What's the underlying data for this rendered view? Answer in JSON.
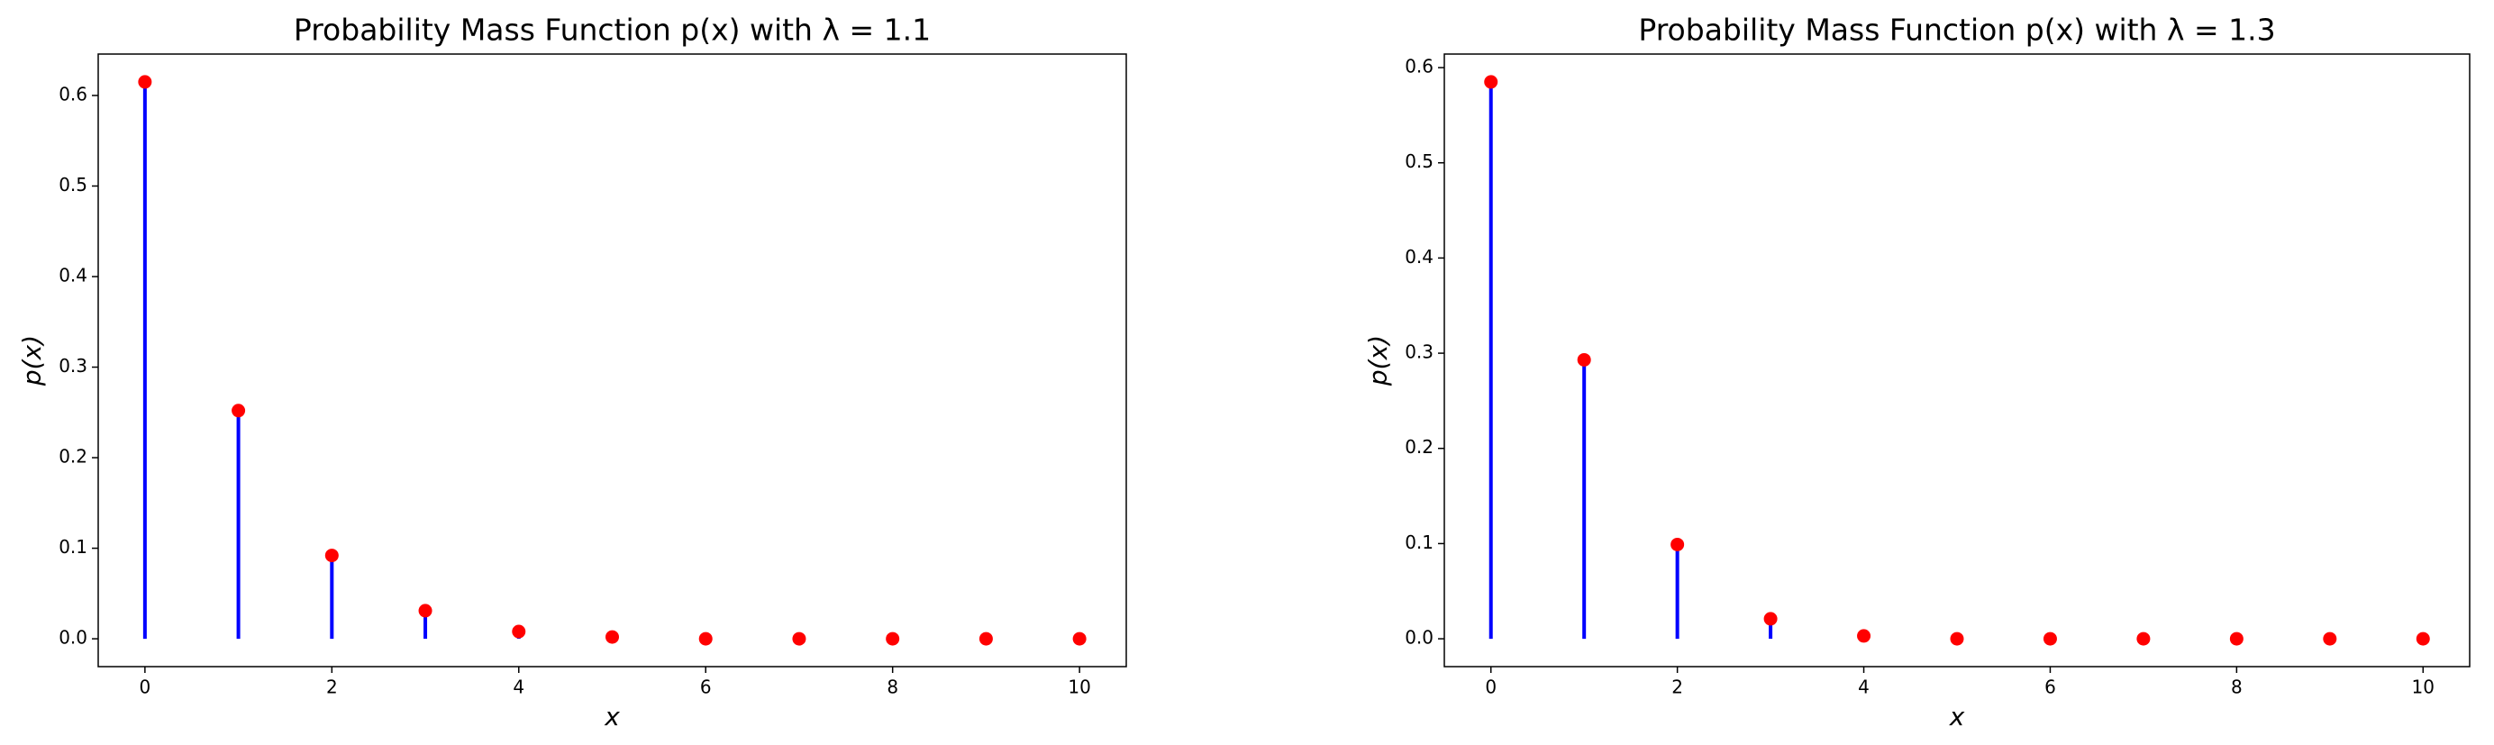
{
  "chart_data": [
    {
      "type": "stem",
      "title": "Probability Mass Function p(x) with λ = 1.1",
      "xlabel": "x",
      "ylabel": "p(x)",
      "x": [
        0,
        1,
        2,
        3,
        4,
        5,
        6,
        7,
        8,
        9,
        10
      ],
      "values": [
        0.615,
        0.252,
        0.092,
        0.031,
        0.008,
        0.002,
        0.0,
        0.0,
        0.0,
        0.0,
        0.0
      ],
      "stem_color": "#0000ff",
      "marker_color": "#ff0000",
      "xlim": [
        -0.5,
        10.5
      ],
      "xticks": [
        0,
        2,
        4,
        6,
        8,
        10
      ],
      "ylim": [
        -0.03075,
        0.64575
      ],
      "yticks": [
        0.0,
        0.1,
        0.2,
        0.3,
        0.4,
        0.5,
        0.6
      ]
    },
    {
      "type": "stem",
      "title": "Probability Mass Function p(x) with λ = 1.3",
      "xlabel": "x",
      "ylabel": "p(x)",
      "x": [
        0,
        1,
        2,
        3,
        4,
        5,
        6,
        7,
        8,
        9,
        10
      ],
      "values": [
        0.585,
        0.293,
        0.099,
        0.021,
        0.003,
        0.0,
        0.0,
        0.0,
        0.0,
        0.0,
        0.0
      ],
      "stem_color": "#0000ff",
      "marker_color": "#ff0000",
      "xlim": [
        -0.5,
        10.5
      ],
      "xticks": [
        0,
        2,
        4,
        6,
        8,
        10
      ],
      "ylim": [
        -0.02925,
        0.61425
      ],
      "yticks": [
        0.0,
        0.1,
        0.2,
        0.3,
        0.4,
        0.5,
        0.6
      ]
    }
  ]
}
